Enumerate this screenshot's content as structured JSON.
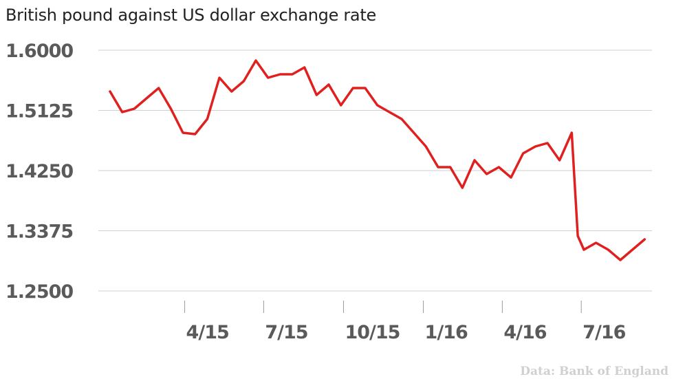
{
  "chart_data": {
    "type": "line",
    "title": "British pound against US dollar exchange rate",
    "source": "Data: Bank of England",
    "xlabel": "",
    "ylabel": "",
    "x_tick_labels": [
      "4/15",
      "7/15",
      "10/15",
      "1/16",
      "4/16",
      "7/16"
    ],
    "y_tick_labels": [
      "1.6000",
      "1.5125",
      "1.4250",
      "1.3375",
      "1.2500"
    ],
    "ylim": [
      1.25,
      1.6
    ],
    "grid": "horizontal",
    "line_color": "#e0201f",
    "series": [
      {
        "x": [
          "2015-01-05",
          "2015-01-19",
          "2015-02-02",
          "2015-02-16",
          "2015-03-02",
          "2015-03-16",
          "2015-03-30",
          "2015-04-13",
          "2015-04-27",
          "2015-05-11",
          "2015-05-25",
          "2015-06-08",
          "2015-06-22",
          "2015-07-06",
          "2015-07-20",
          "2015-08-03",
          "2015-08-17",
          "2015-08-31",
          "2015-09-14",
          "2015-09-28",
          "2015-10-12",
          "2015-10-26",
          "2015-11-09",
          "2015-11-23",
          "2015-12-07",
          "2015-12-21",
          "2016-01-04",
          "2016-01-18",
          "2016-02-01",
          "2016-02-15",
          "2016-02-29",
          "2016-03-14",
          "2016-03-28",
          "2016-04-11",
          "2016-04-25",
          "2016-05-09",
          "2016-05-23",
          "2016-06-06",
          "2016-06-20",
          "2016-06-27",
          "2016-07-04",
          "2016-07-18",
          "2016-08-01",
          "2016-08-15",
          "2016-08-29",
          "2016-09-12"
        ],
        "y": [
          1.54,
          1.51,
          1.515,
          1.53,
          1.545,
          1.515,
          1.48,
          1.478,
          1.5,
          1.56,
          1.54,
          1.555,
          1.585,
          1.56,
          1.565,
          1.565,
          1.575,
          1.535,
          1.55,
          1.52,
          1.545,
          1.545,
          1.52,
          1.51,
          1.5,
          1.48,
          1.46,
          1.43,
          1.43,
          1.4,
          1.44,
          1.42,
          1.43,
          1.415,
          1.45,
          1.46,
          1.465,
          1.44,
          1.48,
          1.33,
          1.31,
          1.32,
          1.31,
          1.295,
          1.31,
          1.325
        ]
      }
    ]
  }
}
